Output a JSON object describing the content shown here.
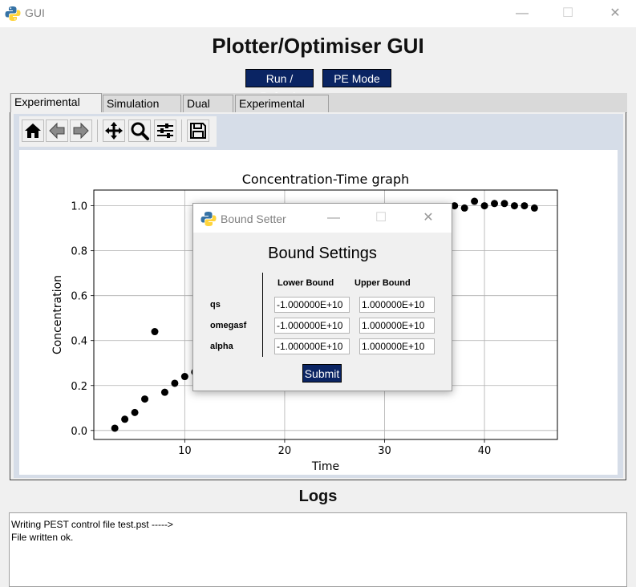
{
  "window": {
    "title": "GUI",
    "minimize": "—",
    "maximize": "☐",
    "close": "✕"
  },
  "header": {
    "title": "Plotter/Optimiser GUI"
  },
  "buttons": {
    "run_refresh": "Run / Refresh",
    "pe_mode": "PE Mode"
  },
  "tabs": [
    {
      "label": "Experimental Plot",
      "active": true
    },
    {
      "label": "Simulation Plot",
      "active": false
    },
    {
      "label": "Dual Plot",
      "active": false
    },
    {
      "label": "Experimental Data",
      "active": false
    }
  ],
  "toolbar": [
    "home-icon",
    "back-icon",
    "forward-icon",
    "pan-icon",
    "zoom-icon",
    "configure-subplots-icon",
    "save-icon"
  ],
  "chart_data": {
    "type": "scatter",
    "title": "Concentration-Time graph",
    "xlabel": "Time",
    "ylabel": "Concentration",
    "xlim": [
      0.9,
      47.3
    ],
    "ylim": [
      -0.04,
      1.07
    ],
    "xticks": [
      "10",
      "20",
      "30",
      "40"
    ],
    "yticks": [
      "0.0",
      "0.2",
      "0.4",
      "0.6",
      "0.8",
      "1.0"
    ],
    "grid": true,
    "marker_color": "#000000",
    "points_x": [
      3,
      4,
      5,
      6,
      7,
      8,
      9,
      10,
      11,
      37,
      38,
      39,
      40,
      41,
      42,
      43,
      44,
      45
    ],
    "points_y": [
      0.01,
      0.05,
      0.08,
      0.14,
      0.44,
      0.17,
      0.21,
      0.24,
      0.26,
      1.0,
      0.99,
      1.02,
      1.0,
      1.01,
      1.01,
      1.0,
      1.0,
      0.99
    ]
  },
  "dialog": {
    "title": "Bound Setter",
    "heading": "Bound Settings",
    "col_lower": "Lower Bound",
    "col_upper": "Upper Bound",
    "rows": [
      {
        "name": "qs",
        "lower": "-1.000000E+10",
        "upper": "1.000000E+10"
      },
      {
        "name": "omegasf",
        "lower": "-1.000000E+10",
        "upper": "1.000000E+10"
      },
      {
        "name": "alpha",
        "lower": "-1.000000E+10",
        "upper": "1.000000E+10"
      }
    ],
    "submit": "Submit"
  },
  "logs": {
    "title": "Logs",
    "lines": [
      "Writing PEST control file test.pst ----->",
      "File written ok."
    ]
  },
  "colors": {
    "accent_navy": "#0a2463",
    "python_blue": "#3572a5",
    "python_yellow": "#ffd43b"
  }
}
